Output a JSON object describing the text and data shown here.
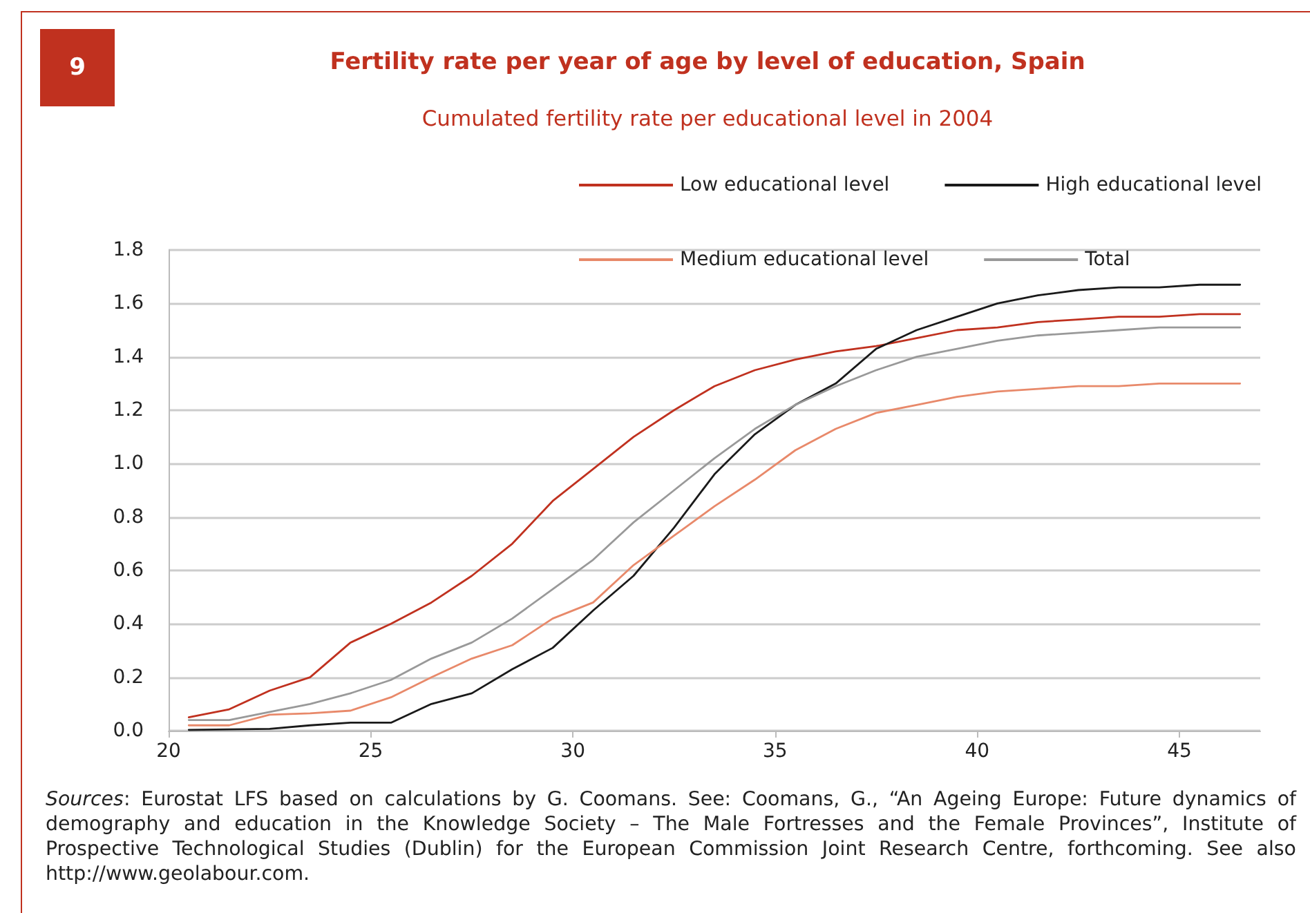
{
  "chart_data": {
    "type": "line",
    "title": "Fertility rate per year of age by level of education, Spain",
    "subtitle": "Cumulated fertility rate per educational level in 2004",
    "annotations": [
      "9",
      "Sources: Eurostat LFS based on calculations by G. Coomans. See: Coomans, G., “An Ageing Europe: Future dynamics of demography and education in the Knowledge Society – The Male Fortresses and the Female Provinces”, Institute of Prospective Technological Studies (Dublin) for the European Commission Joint Research Centre, forthcoming. See also http://www.geolabour.com."
    ],
    "x": [
      20.5,
      21.5,
      22.5,
      23.5,
      24.5,
      25.5,
      26.5,
      27.5,
      28.5,
      29.5,
      30.5,
      31.5,
      32.5,
      33.5,
      34.5,
      35.5,
      36.5,
      37.5,
      38.5,
      39.5,
      40.5,
      41.5,
      42.5,
      43.5,
      44.5,
      45.5,
      46.5
    ],
    "series": [
      {
        "name": "Low educational level",
        "color": "#c0311f",
        "values": [
          0.05,
          0.08,
          0.15,
          0.2,
          0.33,
          0.4,
          0.48,
          0.58,
          0.7,
          0.86,
          0.98,
          1.1,
          1.2,
          1.29,
          1.35,
          1.39,
          1.42,
          1.44,
          1.47,
          1.5,
          1.51,
          1.53,
          1.54,
          1.55,
          1.55,
          1.56,
          1.56
        ]
      },
      {
        "name": "High educational level",
        "color": "#1a1a1a",
        "values": [
          0.003,
          0.005,
          0.007,
          0.02,
          0.03,
          0.03,
          0.1,
          0.14,
          0.23,
          0.31,
          0.45,
          0.58,
          0.76,
          0.96,
          1.11,
          1.22,
          1.3,
          1.43,
          1.5,
          1.55,
          1.6,
          1.63,
          1.65,
          1.66,
          1.66,
          1.67,
          1.67
        ]
      },
      {
        "name": "Medium educational level",
        "color": "#e8896a",
        "values": [
          0.02,
          0.02,
          0.06,
          0.065,
          0.075,
          0.125,
          0.2,
          0.27,
          0.32,
          0.42,
          0.48,
          0.62,
          0.73,
          0.84,
          0.94,
          1.05,
          1.13,
          1.19,
          1.22,
          1.25,
          1.27,
          1.28,
          1.29,
          1.29,
          1.3,
          1.3,
          1.3
        ]
      },
      {
        "name": "Total",
        "color": "#999999",
        "values": [
          0.04,
          0.04,
          0.07,
          0.1,
          0.14,
          0.19,
          0.27,
          0.33,
          0.42,
          0.53,
          0.64,
          0.78,
          0.9,
          1.02,
          1.13,
          1.22,
          1.29,
          1.35,
          1.4,
          1.43,
          1.46,
          1.48,
          1.49,
          1.5,
          1.51,
          1.51,
          1.51
        ]
      }
    ],
    "xlim": [
      20,
      47
    ],
    "xticks": [
      20,
      25,
      30,
      35,
      40,
      45
    ],
    "ylim": [
      0,
      1.8
    ],
    "yticks": [
      {
        "value": 0,
        "label": "0.0"
      },
      {
        "value": 0.2,
        "label": "0.2"
      },
      {
        "value": 0.4,
        "label": "0.4"
      },
      {
        "value": 0.6,
        "label": "0.6"
      },
      {
        "value": 0.8,
        "label": "0.8"
      },
      {
        "value": 1.0,
        "label": "1.0"
      },
      {
        "value": 1.2,
        "label": "1.2"
      },
      {
        "value": 1.4,
        "label": "1.4"
      },
      {
        "value": 1.6,
        "label": "1.6"
      },
      {
        "value": 1.8,
        "label": "1.8"
      }
    ],
    "grid": "y",
    "legend": "top right",
    "marker": "none",
    "line_style": "solid"
  }
}
